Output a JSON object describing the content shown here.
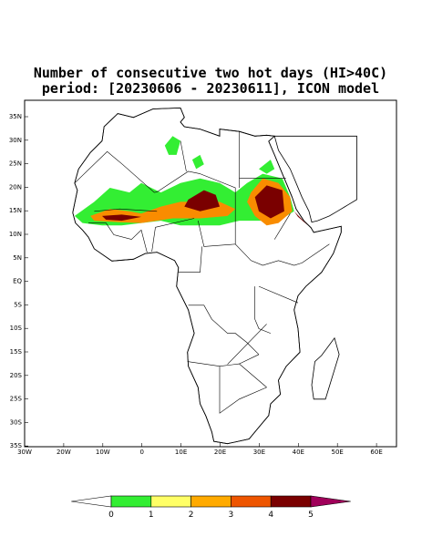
{
  "title": [
    "Number of consecutive two hot days (HI>40C)",
    "period: [20230606 - 20230611], ICON model"
  ],
  "map": {
    "lat_labels": [
      "35N",
      "30N",
      "25N",
      "20N",
      "15N",
      "10N",
      "5N",
      "EQ",
      "5S",
      "10S",
      "15S",
      "20S",
      "25S",
      "30S",
      "35S"
    ],
    "lon_labels": [
      "30W",
      "20W",
      "10W",
      "0",
      "10E",
      "20E",
      "30E",
      "40E",
      "50E",
      "60E"
    ]
  },
  "colorbar": {
    "levels": [
      0,
      1,
      2,
      3,
      4,
      5
    ],
    "colors": [
      "#ffffff",
      "#33ee33",
      "#ffff66",
      "#ffaa00",
      "#ee5500",
      "#7a0000",
      "#a0005a"
    ]
  }
}
